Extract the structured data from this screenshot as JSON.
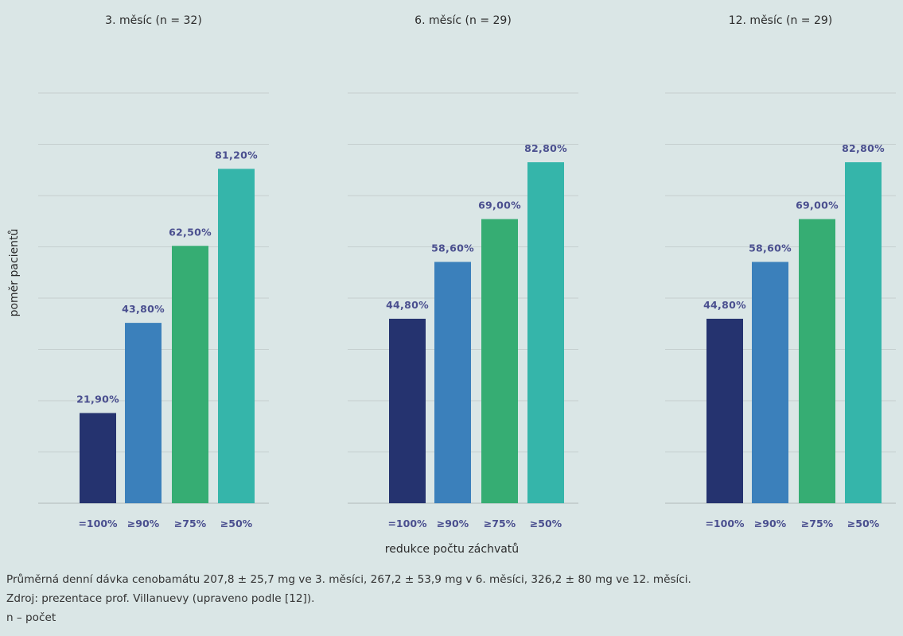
{
  "chart_data": {
    "type": "bar",
    "ylabel": "poměr pacientů",
    "xlabel": "redukce počtu záchvatů",
    "ylim": [
      0,
      100
    ],
    "categories": [
      "=100%",
      "≥90%",
      "≥75%",
      "≥50%"
    ],
    "colors": [
      "#25336f",
      "#3b80bb",
      "#36ad73",
      "#35b5aa"
    ],
    "grid": true,
    "panels": [
      {
        "title": "3. měsíc (n = 32)",
        "values": [
          21.9,
          43.8,
          62.5,
          81.2
        ],
        "labels": [
          "21,90%",
          "43,80%",
          "62,50%",
          "81,20%"
        ]
      },
      {
        "title": "6. měsíc (n = 29)",
        "values": [
          44.8,
          58.6,
          69.0,
          82.8
        ],
        "labels": [
          "44,80%",
          "58,60%",
          "69,00%",
          "82,80%"
        ]
      },
      {
        "title": "12. měsíc (n = 29)",
        "values": [
          44.8,
          58.6,
          69.0,
          82.8
        ],
        "labels": [
          "44,80%",
          "58,60%",
          "69,00%",
          "82,80%"
        ]
      }
    ]
  },
  "footnotes": [
    "Průměrná denní dávka cenobamátu 207,8 ± 25,7 mg ve 3. měsíci, 267,2 ± 53,9 mg v 6. měsíci, 326,2 ± 80 mg ve 12. měsíci.",
    "Zdroj: prezentace prof. Villanuevy (upraveno podle [12]).",
    "n – počet"
  ]
}
